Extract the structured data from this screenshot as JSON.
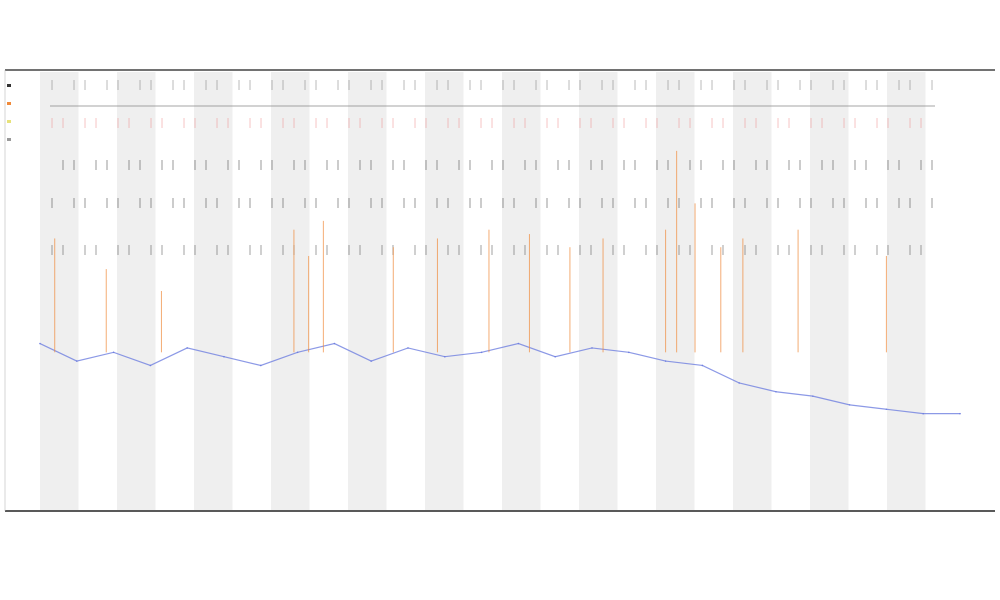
{
  "chart_data": {
    "type": "line",
    "title": "",
    "subtitle_lines": [],
    "xlabel": "",
    "ylabel": "",
    "grid": false,
    "shaded_bands": true,
    "legend_placement": "top-left",
    "series": [
      {
        "name": "",
        "color": "#6f7fe0",
        "role": "baseline-trace",
        "x": [
          0,
          10,
          20,
          30,
          40,
          50,
          60,
          70,
          80,
          90,
          100,
          110,
          120,
          130,
          140,
          150,
          160,
          170,
          180,
          190,
          200,
          210,
          220,
          230,
          240,
          250
        ],
        "values": [
          0.38,
          0.34,
          0.36,
          0.33,
          0.37,
          0.35,
          0.33,
          0.36,
          0.38,
          0.34,
          0.37,
          0.35,
          0.36,
          0.38,
          0.35,
          0.37,
          0.36,
          0.34,
          0.33,
          0.29,
          0.27,
          0.26,
          0.24,
          0.23,
          0.22,
          0.22
        ]
      },
      {
        "name": "",
        "color": "#f08a3a",
        "role": "spikes",
        "x": [
          4,
          18,
          33,
          69,
          73,
          77,
          96,
          108,
          122,
          133,
          144,
          153,
          170,
          173,
          178,
          185,
          191,
          206,
          230
        ],
        "values": [
          0.62,
          0.55,
          0.5,
          0.64,
          0.58,
          0.66,
          0.6,
          0.62,
          0.64,
          0.63,
          0.6,
          0.62,
          0.64,
          0.82,
          0.7,
          0.6,
          0.62,
          0.64,
          0.58
        ]
      }
    ],
    "xlim": [
      0,
      250
    ],
    "ylim": [
      0,
      1
    ],
    "legend_entries": [
      {
        "label": "",
        "color": "#333333"
      },
      {
        "label": "",
        "color": "#f08a3a"
      },
      {
        "label": "",
        "color": "#e7e27a"
      },
      {
        "label": "",
        "color": "#999999"
      }
    ]
  }
}
